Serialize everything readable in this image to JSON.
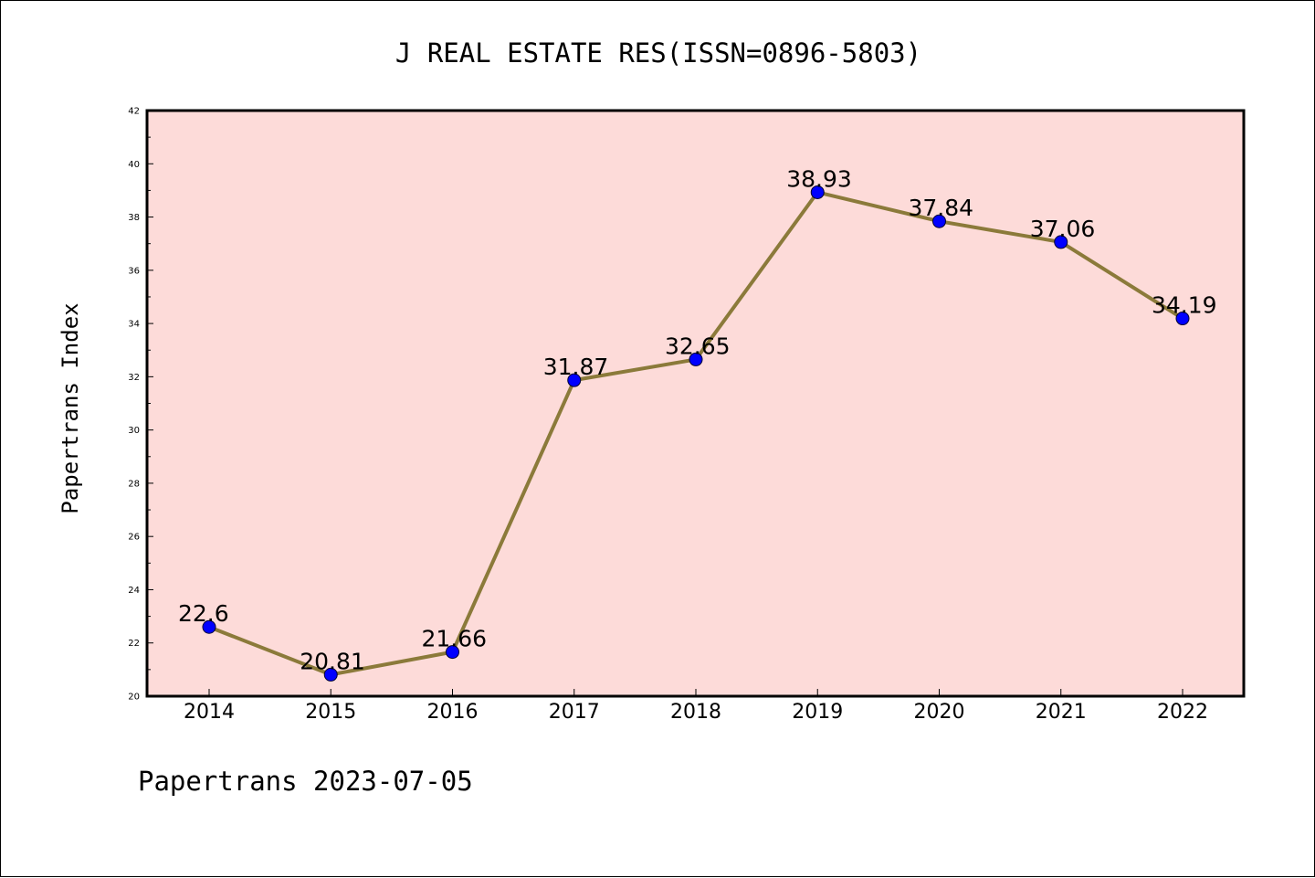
{
  "chart_data": {
    "type": "line",
    "title": "J REAL ESTATE RES(ISSN=0896-5803)",
    "ylabel": "Papertrans Index",
    "xlabel": "",
    "footer": "Papertrans 2023-07-05",
    "categories": [
      "2014",
      "2015",
      "2016",
      "2017",
      "2018",
      "2019",
      "2020",
      "2021",
      "2022"
    ],
    "values": [
      22.6,
      20.81,
      21.66,
      31.87,
      32.65,
      38.93,
      37.84,
      37.06,
      34.19
    ],
    "data_labels": [
      "22.6",
      "20.81",
      "21.66",
      "31.87",
      "32.65",
      "38.93",
      "37.84",
      "37.06",
      "34.19"
    ],
    "ylim": [
      20,
      42
    ],
    "yticks": [
      20,
      22,
      24,
      26,
      28,
      30,
      32,
      34,
      36,
      38,
      40,
      42
    ],
    "ytick_labels": [
      "20",
      "22",
      "24",
      "26",
      "28",
      "30",
      "32",
      "34",
      "36",
      "38",
      "40",
      "42"
    ],
    "grid": false,
    "legend": "none",
    "colors": {
      "plot_background": "#fddbd9",
      "line": "#8b7a3a",
      "marker": "#0000ff",
      "marker_edge": "#000033"
    }
  }
}
